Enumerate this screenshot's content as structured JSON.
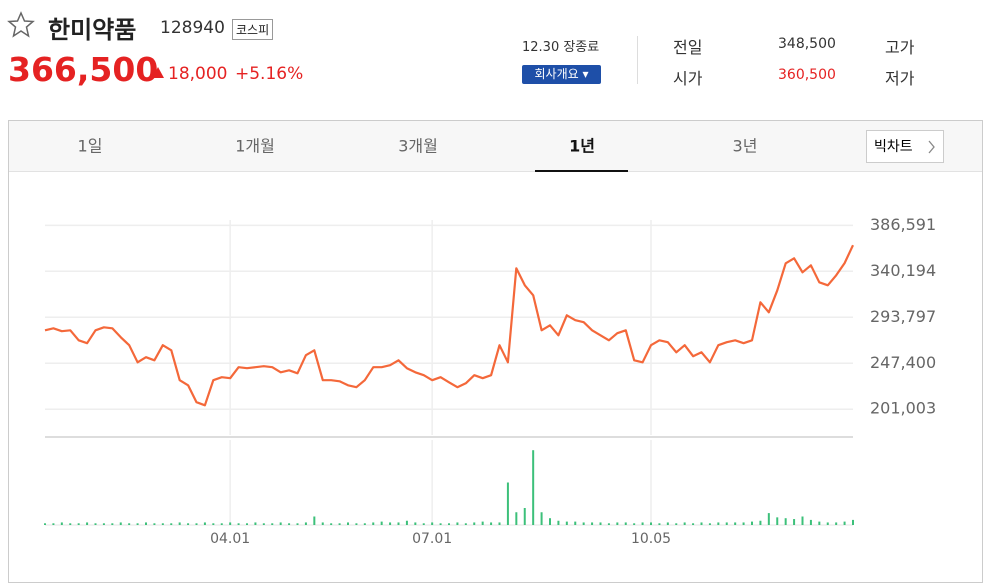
{
  "header": {
    "title": "한미약품",
    "code": "128940",
    "market": "코스피",
    "price": "366,500",
    "change": "18,000",
    "change_pct": "+5.16%",
    "status": "12.30 장종료",
    "button": "회사개요",
    "info": [
      [
        "전일",
        "348,500",
        "고가"
      ],
      [
        "시가",
        "360,500",
        "저가"
      ]
    ]
  },
  "tabs": {
    "items": [
      "1일",
      "1개월",
      "3개월",
      "1년",
      "3년"
    ],
    "active": 3,
    "big_chart": "빅차트"
  },
  "chart_data": [
    {
      "type": "line",
      "categories": [
        null,
        null,
        null,
        null,
        null,
        null,
        null,
        null,
        null,
        null,
        null,
        null,
        null,
        null,
        null,
        null,
        null,
        null,
        null,
        null,
        null,
        null,
        "04.01",
        null,
        null,
        null,
        null,
        null,
        null,
        null,
        null,
        null,
        null,
        null,
        null,
        null,
        null,
        null,
        null,
        null,
        null,
        null,
        null,
        null,
        null,
        null,
        "07.01",
        null,
        null,
        null,
        null,
        null,
        null,
        null,
        null,
        null,
        null,
        null,
        null,
        null,
        null,
        null,
        null,
        null,
        null,
        null,
        null,
        null,
        null,
        null,
        null,
        null,
        "10.05",
        null,
        null,
        null,
        null,
        null,
        null,
        null,
        null,
        null,
        null,
        null,
        null,
        null,
        null,
        null,
        null,
        null,
        null,
        null,
        null,
        null,
        null,
        null,
        null
      ],
      "series": [
        {
          "color": "#f4683a",
          "values": [
            280700,
            282700,
            279700,
            280700,
            270600,
            267600,
            280700,
            283700,
            282700,
            273600,
            265600,
            248400,
            253500,
            250400,
            265600,
            260500,
            230300,
            225200,
            208100,
            205000,
            230300,
            233300,
            232300,
            243400,
            242400,
            243400,
            244400,
            243400,
            238300,
            240300,
            237300,
            255500,
            260500,
            230300,
            230300,
            229200,
            225200,
            223200,
            230300,
            243400,
            243400,
            245400,
            250400,
            242400,
            238300,
            235300,
            230300,
            233300,
            228200,
            223200,
            227200,
            235300,
            232300,
            235300,
            265600,
            248400,
            343200,
            326100,
            316000,
            280700,
            285700,
            275600,
            295800,
            290800,
            288800,
            280700,
            275600,
            270600,
            277700,
            280700,
            250400,
            248400,
            265600,
            270600,
            268600,
            258500,
            265600,
            254500,
            258500,
            248400,
            265600,
            268600,
            270600,
            267600,
            270600,
            308900,
            298800,
            321000,
            348300,
            353300,
            339200,
            346200,
            329100,
            326100,
            336200,
            348500,
            366500
          ]
        }
      ],
      "ylim": [
        175000,
        397000
      ],
      "yticks": [
        {
          "value": 386591,
          "label": "386,591"
        },
        {
          "value": 340194,
          "label": "340,194"
        },
        {
          "value": 293797,
          "label": "293,797"
        },
        {
          "value": 247400,
          "label": "247,400"
        },
        {
          "value": 201003,
          "label": "201,003"
        }
      ],
      "grid": true
    },
    {
      "type": "bar",
      "color": "#3cc07a",
      "ylim": [
        0,
        100
      ],
      "values": [
        2,
        2,
        3,
        2,
        2,
        3,
        2,
        2,
        2,
        3,
        2,
        2,
        3,
        2,
        2,
        2,
        3,
        2,
        2,
        3,
        2,
        2,
        3,
        2,
        2,
        3,
        2,
        2,
        3,
        2,
        2,
        3,
        10,
        3,
        2,
        2,
        3,
        2,
        2,
        3,
        4,
        3,
        3,
        5,
        3,
        2,
        3,
        2,
        2,
        3,
        2,
        3,
        4,
        3,
        3,
        50,
        15,
        20,
        88,
        15,
        8,
        5,
        4,
        4,
        3,
        3,
        3,
        2,
        3,
        3,
        2,
        3,
        3,
        2,
        3,
        2,
        3,
        2,
        3,
        2,
        3,
        3,
        3,
        3,
        4,
        5,
        14,
        9,
        8,
        7,
        10,
        6,
        4,
        3,
        3,
        4,
        6
      ]
    }
  ]
}
